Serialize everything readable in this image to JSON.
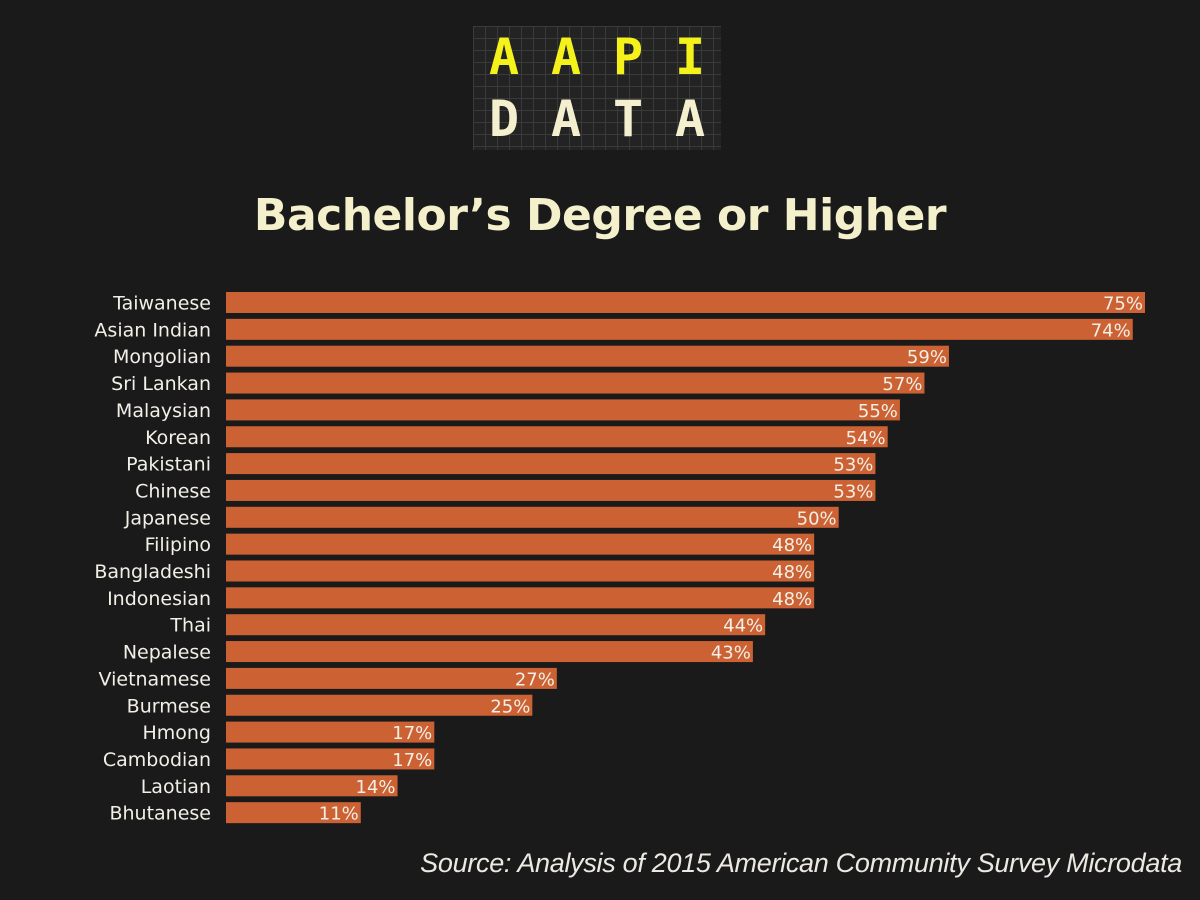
{
  "logo": {
    "row1": [
      "A",
      "A",
      "P",
      "I"
    ],
    "row2": [
      "D",
      "A",
      "T",
      "A"
    ]
  },
  "colors": {
    "background": "#1b1a1b",
    "bar": "#cc6233",
    "title": "#f4f0cc",
    "label": "#f1efe6",
    "logo_accent": "#f4f21a"
  },
  "source": "Source: Analysis of 2015 American Community Survey Microdata",
  "chart_data": {
    "type": "bar",
    "orientation": "horizontal",
    "title": "Bachelor’s Degree or Higher",
    "xlabel": "",
    "ylabel": "",
    "xlim": [
      0,
      75
    ],
    "grid": false,
    "legend": "none",
    "categories": [
      "Taiwanese",
      "Asian Indian",
      "Mongolian",
      "Sri Lankan",
      "Malaysian",
      "Korean",
      "Pakistani",
      "Chinese",
      "Japanese",
      "Filipino",
      "Bangladeshi",
      "Indonesian",
      "Thai",
      "Nepalese",
      "Vietnamese",
      "Burmese",
      "Hmong",
      "Cambodian",
      "Laotian",
      "Bhutanese"
    ],
    "values": [
      75,
      74,
      59,
      57,
      55,
      54,
      53,
      53,
      50,
      48,
      48,
      48,
      44,
      43,
      27,
      25,
      17,
      17,
      14,
      11
    ],
    "value_labels": [
      "75%",
      "74%",
      "59%",
      "57%",
      "55%",
      "54%",
      "53%",
      "53%",
      "50%",
      "48%",
      "48%",
      "48%",
      "44%",
      "43%",
      "27%",
      "25%",
      "17%",
      "17%",
      "14%",
      "11%"
    ]
  }
}
